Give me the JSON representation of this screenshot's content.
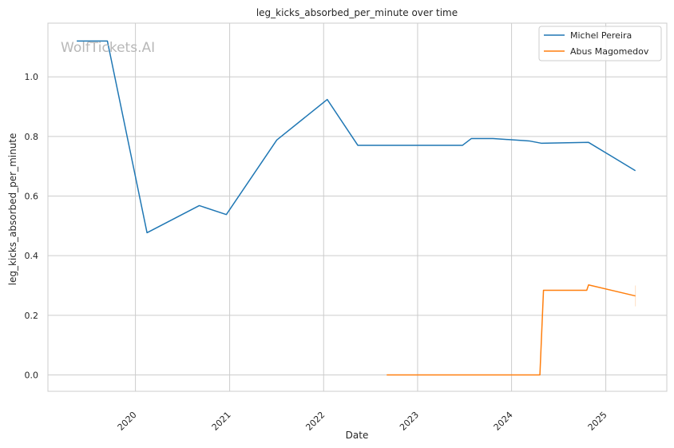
{
  "chart_data": {
    "type": "line",
    "title": "leg_kicks_absorbed_per_minute over time",
    "xlabel": "Date",
    "ylabel": "leg_kicks_absorbed_per_minute",
    "watermark": "WolfTickets.AI",
    "x_tick_labels": [
      "2020",
      "2021",
      "2022",
      "2023",
      "2024",
      "2025"
    ],
    "y_tick_labels": [
      "0.0",
      "0.2",
      "0.4",
      "0.6",
      "0.8",
      "1.0"
    ],
    "ylim": [
      -0.055,
      1.18
    ],
    "xlim": [
      "2019-01-26",
      "2025-08-26"
    ],
    "grid": true,
    "legend_position": "top-right",
    "series": [
      {
        "name": "Michel Pereira",
        "color": "#1f77b4",
        "points": [
          {
            "x": "2019-05-18",
            "y": 1.12
          },
          {
            "x": "2019-09-14",
            "y": 1.12
          },
          {
            "x": "2020-02-15",
            "y": 0.477
          },
          {
            "x": "2020-09-05",
            "y": 0.568
          },
          {
            "x": "2020-12-19",
            "y": 0.538
          },
          {
            "x": "2021-07-03",
            "y": 0.788
          },
          {
            "x": "2022-01-15",
            "y": 0.924
          },
          {
            "x": "2022-05-14",
            "y": 0.77
          },
          {
            "x": "2023-06-24",
            "y": 0.77
          },
          {
            "x": "2023-07-29",
            "y": 0.793
          },
          {
            "x": "2023-10-21",
            "y": 0.793
          },
          {
            "x": "2024-03-09",
            "y": 0.785
          },
          {
            "x": "2024-04-27",
            "y": 0.777
          },
          {
            "x": "2024-10-26",
            "y": 0.78
          },
          {
            "x": "2025-04-26",
            "y": 0.685
          }
        ]
      },
      {
        "name": "Abus Magomedov",
        "color": "#ff7f0e",
        "points": [
          {
            "x": "2022-09-03",
            "y": 0.0
          },
          {
            "x": "2024-04-20",
            "y": 0.0
          },
          {
            "x": "2024-05-04",
            "y": 0.284
          },
          {
            "x": "2024-10-19",
            "y": 0.284
          },
          {
            "x": "2024-10-26",
            "y": 0.302
          },
          {
            "x": "2025-04-26",
            "y": 0.265
          }
        ]
      }
    ]
  }
}
